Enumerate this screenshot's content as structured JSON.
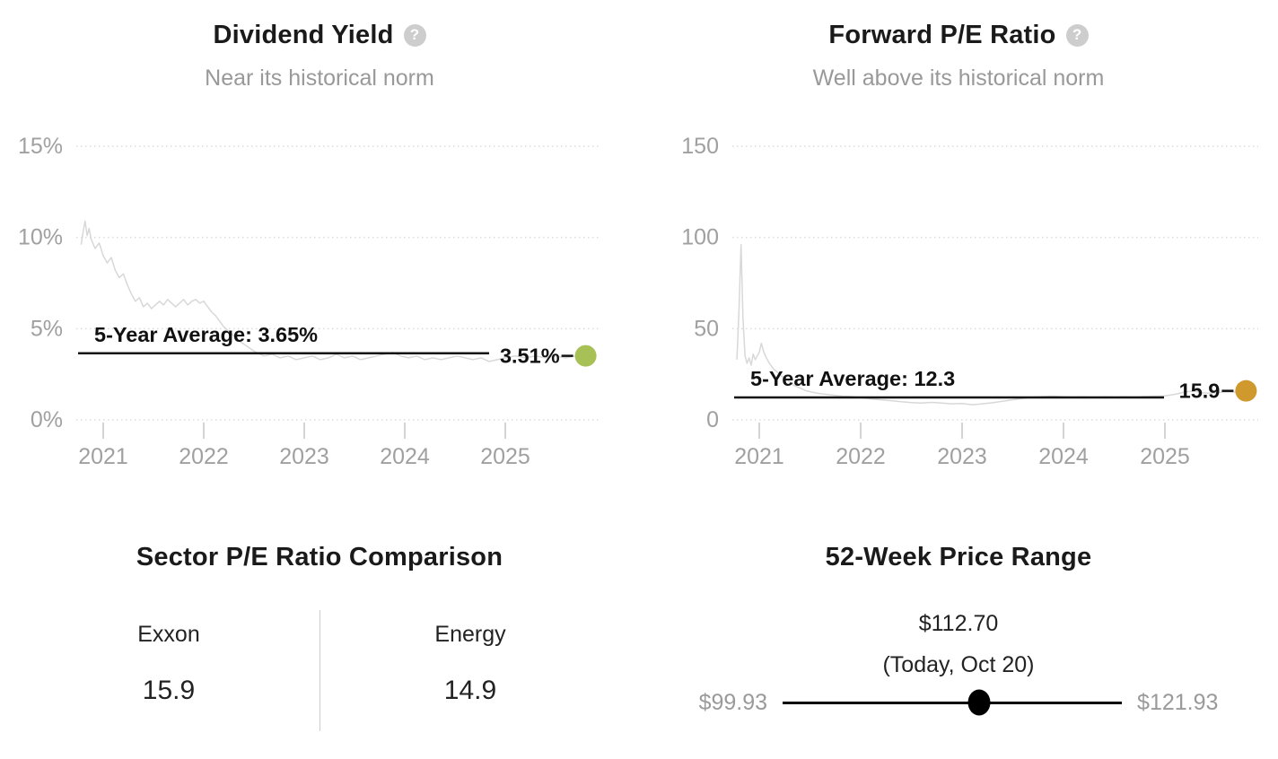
{
  "panels": {
    "dividend_yield": {
      "title": "Dividend Yield",
      "help_glyph": "?",
      "subtitle": "Near its historical norm"
    },
    "forward_pe": {
      "title": "Forward P/E Ratio",
      "help_glyph": "?",
      "subtitle": "Well above its historical norm"
    },
    "sector_comparison": {
      "title": "Sector P/E Ratio Comparison",
      "columns": [
        {
          "label": "Exxon",
          "value": "15.9"
        },
        {
          "label": "Energy",
          "value": "14.9"
        }
      ]
    },
    "price_range": {
      "title": "52-Week Price Range",
      "current_price": "$112.70",
      "current_date": "(Today, Oct 20)",
      "low_label": "$99.93",
      "high_label": "$121.93",
      "low_value": 99.93,
      "high_value": 121.93,
      "current_value": 112.7
    }
  },
  "colors": {
    "dividend_dot": "#a8c157",
    "pe_dot": "#cf992e",
    "series_line": "#d8d8d8",
    "average_line": "#111111",
    "grid": "#dcdcdc",
    "tick": "#d4d4d4",
    "axis_text": "#a0a0a0",
    "title_text": "#1a1a1a"
  },
  "chart_data": [
    {
      "type": "line",
      "title": "Dividend Yield",
      "subtitle": "Near its historical norm",
      "ylim": [
        0,
        15
      ],
      "yticks": [
        0,
        5,
        10,
        15
      ],
      "ytick_labels": [
        "0%",
        "5%",
        "10%",
        "15%"
      ],
      "xlim": [
        2020.75,
        2025.85
      ],
      "xticks": [
        2021,
        2022,
        2023,
        2024,
        2025
      ],
      "grid": "dotted horizontal",
      "average_label": "5-Year Average: 3.65%",
      "average_value": 3.65,
      "current_label": "3.51%",
      "current_value": 3.51,
      "dot_color": "#a8c157",
      "series": {
        "x": [
          2020.78,
          2020.8,
          2020.82,
          2020.84,
          2020.86,
          2020.88,
          2020.92,
          2020.96,
          2021.0,
          2021.04,
          2021.08,
          2021.12,
          2021.16,
          2021.2,
          2021.24,
          2021.28,
          2021.32,
          2021.36,
          2021.4,
          2021.44,
          2021.48,
          2021.52,
          2021.56,
          2021.6,
          2021.64,
          2021.68,
          2021.72,
          2021.76,
          2021.8,
          2021.84,
          2021.88,
          2021.92,
          2021.96,
          2022.0,
          2022.04,
          2022.08,
          2022.12,
          2022.16,
          2022.2,
          2022.24,
          2022.28,
          2022.32,
          2022.36,
          2022.44,
          2022.52,
          2022.6,
          2022.68,
          2022.76,
          2022.84,
          2022.92,
          2023.0,
          2023.08,
          2023.16,
          2023.24,
          2023.32,
          2023.4,
          2023.48,
          2023.56,
          2023.64,
          2023.72,
          2023.8,
          2023.88,
          2023.96,
          2024.04,
          2024.12,
          2024.2,
          2024.28,
          2024.36,
          2024.44,
          2024.52,
          2024.6,
          2024.68,
          2024.76,
          2024.84,
          2024.92,
          2025.0,
          2025.1,
          2025.2,
          2025.3,
          2025.4,
          2025.5,
          2025.6,
          2025.7,
          2025.8
        ],
        "y": [
          9.6,
          10.3,
          10.9,
          10.1,
          10.5,
          9.9,
          9.4,
          9.7,
          9.0,
          8.6,
          8.9,
          8.2,
          7.8,
          8.0,
          7.4,
          6.9,
          6.5,
          6.7,
          6.2,
          6.4,
          6.1,
          6.3,
          6.5,
          6.3,
          6.6,
          6.4,
          6.2,
          6.4,
          6.6,
          6.3,
          6.5,
          6.6,
          6.4,
          6.5,
          6.2,
          5.9,
          5.7,
          5.4,
          5.1,
          4.9,
          4.7,
          4.5,
          4.3,
          4.0,
          3.7,
          3.5,
          3.6,
          3.4,
          3.5,
          3.3,
          3.4,
          3.5,
          3.3,
          3.4,
          3.6,
          3.4,
          3.5,
          3.3,
          3.4,
          3.5,
          3.6,
          3.7,
          3.5,
          3.4,
          3.5,
          3.3,
          3.4,
          3.3,
          3.4,
          3.5,
          3.4,
          3.3,
          3.4,
          3.2,
          3.3,
          3.4,
          3.5,
          3.4,
          3.5,
          3.4,
          3.5,
          3.4,
          3.5,
          3.51
        ]
      }
    },
    {
      "type": "line",
      "title": "Forward P/E Ratio",
      "subtitle": "Well above its historical norm",
      "ylim": [
        0,
        150
      ],
      "yticks": [
        0,
        50,
        100,
        150
      ],
      "ytick_labels": [
        "0",
        "50",
        "100",
        "150"
      ],
      "xlim": [
        2020.75,
        2025.85
      ],
      "xticks": [
        2021,
        2022,
        2023,
        2024,
        2025
      ],
      "grid": "dotted horizontal",
      "average_label": "5-Year Average: 12.3",
      "average_value": 12.3,
      "current_label": "15.9",
      "current_value": 15.9,
      "dot_color": "#cf992e",
      "series": {
        "x": [
          2020.78,
          2020.8,
          2020.82,
          2020.84,
          2020.86,
          2020.88,
          2020.9,
          2020.92,
          2020.94,
          2020.96,
          2020.98,
          2021.0,
          2021.02,
          2021.04,
          2021.06,
          2021.1,
          2021.14,
          2021.18,
          2021.22,
          2021.26,
          2021.3,
          2021.34,
          2021.38,
          2021.42,
          2021.46,
          2021.5,
          2021.58,
          2021.66,
          2021.74,
          2021.82,
          2021.9,
          2022.0,
          2022.1,
          2022.2,
          2022.3,
          2022.4,
          2022.5,
          2022.6,
          2022.7,
          2022.8,
          2022.9,
          2023.0,
          2023.1,
          2023.2,
          2023.3,
          2023.4,
          2023.5,
          2023.6,
          2023.7,
          2023.8,
          2023.9,
          2024.0,
          2024.1,
          2024.2,
          2024.3,
          2024.4,
          2024.5,
          2024.6,
          2024.7,
          2024.8,
          2024.9,
          2025.0,
          2025.1,
          2025.2,
          2025.28,
          2025.36,
          2025.44,
          2025.52,
          2025.6,
          2025.68,
          2025.76,
          2025.8
        ],
        "y": [
          33,
          60,
          96,
          55,
          35,
          31,
          34,
          30,
          36,
          33,
          35,
          37,
          42,
          38,
          35,
          31,
          28,
          26,
          24,
          22,
          21,
          19,
          18,
          17,
          16,
          15.5,
          14.5,
          14,
          13.5,
          13,
          12.8,
          12.3,
          11.5,
          11,
          10.5,
          10,
          9.5,
          9.2,
          9.6,
          9.2,
          8.8,
          9.0,
          8.3,
          8.8,
          9.4,
          10.2,
          11.0,
          11.8,
          12.4,
          12.8,
          13.0,
          12.7,
          12.4,
          12.6,
          12.3,
          12.6,
          12.4,
          12.7,
          12.5,
          12.8,
          13.0,
          13.2,
          14.0,
          15.3,
          15.8,
          14.9,
          14.6,
          15.0,
          15.3,
          15.1,
          15.6,
          15.9
        ]
      }
    }
  ]
}
